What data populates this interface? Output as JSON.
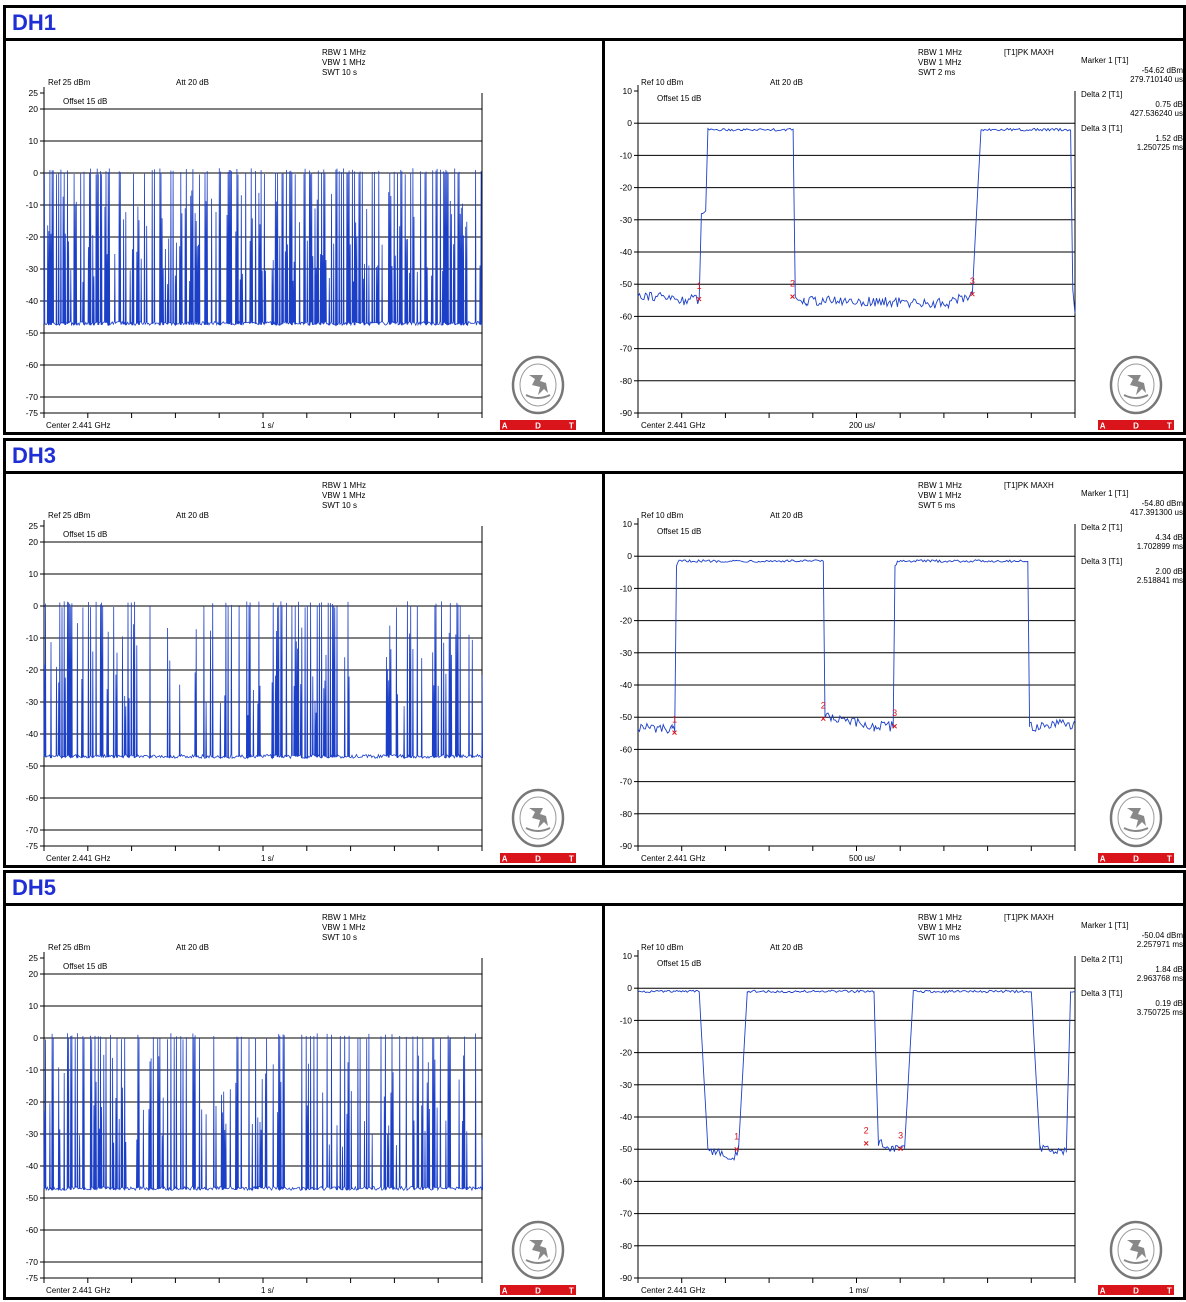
{
  "colors": {
    "title": "#1f2fd6",
    "trace": "#1c3fc8",
    "marker": "#d9141b",
    "grid": "#000000",
    "adt": "#d9141b"
  },
  "sections": [
    {
      "title": "DH1",
      "left": {
        "ref": "Ref 25 dBm",
        "att": "Att 20 dB",
        "rbw": "RBW 1 MHz",
        "vbw": "VBW 1 MHz",
        "swt": "SWT 10 s",
        "offset": "Offset 15 dB",
        "center": "Center 2.441 GHz",
        "span": "1 s/",
        "y_ticks": [
          "25",
          "20",
          "10",
          "0",
          "-10",
          "-20",
          "-30",
          "-40",
          "-50",
          "-60",
          "-70",
          "-75"
        ],
        "adt": [
          "A",
          "D",
          "T"
        ]
      },
      "right": {
        "ref": "Ref 10 dBm",
        "att": "Att 20 dB",
        "rbw": "RBW 1 MHz",
        "vbw": "VBW 1 MHz",
        "swt": "SWT 2 ms",
        "trace_mode": "[T1]PK MAXH",
        "offset": "Offset 15 dB",
        "center": "Center 2.441 GHz",
        "span": "200 us/",
        "y_ticks": [
          "10",
          "0",
          "-10",
          "-20",
          "-30",
          "-40",
          "-50",
          "-60",
          "-70",
          "-80",
          "-90"
        ],
        "markers": [
          {
            "label": "Marker 1 [T1]",
            "value": "-54.62 dBm",
            "time": "279.710140 us"
          },
          {
            "label": "Delta 2 [T1]",
            "value": "0.75 dB",
            "time": "427.536240 us"
          },
          {
            "label": "Delta 3 [T1]",
            "value": "1.52 dB",
            "time": "1.250725 ms"
          }
        ],
        "adt": [
          "A",
          "D",
          "T"
        ]
      }
    },
    {
      "title": "DH3",
      "left": {
        "ref": "Ref 25 dBm",
        "att": "Att 20 dB",
        "rbw": "RBW 1 MHz",
        "vbw": "VBW 1 MHz",
        "swt": "SWT 10 s",
        "offset": "Offset 15 dB",
        "center": "Center 2.441 GHz",
        "span": "1 s/",
        "y_ticks": [
          "25",
          "20",
          "10",
          "0",
          "-10",
          "-20",
          "-30",
          "-40",
          "-50",
          "-60",
          "-70",
          "-75"
        ],
        "adt": [
          "A",
          "D",
          "T"
        ]
      },
      "right": {
        "ref": "Ref 10 dBm",
        "att": "Att 20 dB",
        "rbw": "RBW 1 MHz",
        "vbw": "VBW 1 MHz",
        "swt": "SWT 5 ms",
        "trace_mode": "[T1]PK MAXH",
        "offset": "Offset 15 dB",
        "center": "Center 2.441 GHz",
        "span": "500 us/",
        "y_ticks": [
          "10",
          "0",
          "-10",
          "-20",
          "-30",
          "-40",
          "-50",
          "-60",
          "-70",
          "-80",
          "-90"
        ],
        "markers": [
          {
            "label": "Marker 1 [T1]",
            "value": "-54.80 dBm",
            "time": "417.391300 us"
          },
          {
            "label": "Delta 2 [T1]",
            "value": "4.34 dB",
            "time": "1.702899 ms"
          },
          {
            "label": "Delta 3 [T1]",
            "value": "2.00 dB",
            "time": "2.518841 ms"
          }
        ],
        "adt": [
          "A",
          "D",
          "T"
        ]
      }
    },
    {
      "title": "DH5",
      "left": {
        "ref": "Ref 25 dBm",
        "att": "Att 20 dB",
        "rbw": "RBW 1 MHz",
        "vbw": "VBW 1 MHz",
        "swt": "SWT 10 s",
        "offset": "Offset 15 dB",
        "center": "Center 2.441 GHz",
        "span": "1 s/",
        "y_ticks": [
          "25",
          "20",
          "10",
          "0",
          "-10",
          "-20",
          "-30",
          "-40",
          "-50",
          "-60",
          "-70",
          "-75"
        ],
        "adt": [
          "A",
          "D",
          "T"
        ]
      },
      "right": {
        "ref": "Ref 10 dBm",
        "att": "Att 20 dB",
        "rbw": "RBW 1 MHz",
        "vbw": "VBW 1 MHz",
        "swt": "SWT 10 ms",
        "trace_mode": "[T1]PK MAXH",
        "offset": "Offset 15 dB",
        "center": "Center 2.441 GHz",
        "span": "1 ms/",
        "y_ticks": [
          "10",
          "0",
          "-10",
          "-20",
          "-30",
          "-40",
          "-50",
          "-60",
          "-70",
          "-80",
          "-90"
        ],
        "markers": [
          {
            "label": "Marker 1 [T1]",
            "value": "-50.04 dBm",
            "time": "2.257971 ms"
          },
          {
            "label": "Delta 2 [T1]",
            "value": "1.84 dB",
            "time": "2.963768 ms"
          },
          {
            "label": "Delta 3 [T1]",
            "value": "0.19 dB",
            "time": "3.750725 ms"
          }
        ],
        "adt": [
          "A",
          "D",
          "T"
        ]
      }
    }
  ],
  "chart_data": [
    {
      "type": "line",
      "section": "DH1",
      "trace": "left",
      "title": "",
      "xlabel": "",
      "ylabel": "",
      "x_unit_per_div": "1 s",
      "ylim": [
        -75,
        25
      ],
      "sweep_s": 10,
      "pattern": "dense hopping bursts",
      "high_dbm": -0.5,
      "low_dbm": -47,
      "density": "high"
    },
    {
      "type": "line",
      "section": "DH1",
      "trace": "right",
      "title": "",
      "xlabel": "",
      "ylabel": "",
      "x_unit_per_div": "200 us",
      "ylim": [
        -90,
        10
      ],
      "sweep_ms": 2,
      "series": [
        {
          "x": [
            0,
            0.21,
            0.28,
            0.29,
            0.31,
            0.32,
            0.71,
            0.72,
            0.76,
            0.77,
            1.42,
            1.53,
            1.55,
            1.57,
            1.58,
            1.98,
            1.99,
            2.0
          ],
          "y": [
            -53,
            -55,
            -54.6,
            -28,
            -27,
            -2,
            -2,
            -53.9,
            -55,
            -55,
            -56,
            -53.1,
            -27,
            -2,
            -2,
            -2,
            -52,
            -58
          ]
        }
      ],
      "markers": [
        {
          "n": 1,
          "x": 0.2797,
          "y": -54.62
        },
        {
          "n": 2,
          "x": 0.7072,
          "delta_db": 0.75
        },
        {
          "n": 3,
          "x": 1.5304,
          "delta_db": 1.52
        }
      ]
    },
    {
      "type": "line",
      "section": "DH3",
      "trace": "left",
      "title": "",
      "xlabel": "",
      "ylabel": "",
      "x_unit_per_div": "1 s",
      "ylim": [
        -75,
        25
      ],
      "sweep_s": 10,
      "pattern": "hopping bursts with gaps",
      "high_dbm": -0.5,
      "low_dbm": -47,
      "density": "medium"
    },
    {
      "type": "line",
      "section": "DH3",
      "trace": "right",
      "title": "",
      "xlabel": "",
      "ylabel": "",
      "x_unit_per_div": "500 us",
      "ylim": [
        -90,
        10
      ],
      "sweep_ms": 5,
      "series": [
        {
          "x": [
            0,
            0.39,
            0.42,
            0.44,
            0.47,
            2.12,
            2.14,
            2.7,
            2.92,
            2.94,
            2.97,
            4.46,
            4.48,
            5.0
          ],
          "y": [
            -53,
            -54,
            -54.8,
            -3,
            -1.5,
            -1.5,
            -50,
            -53,
            -52.8,
            -3,
            -1.5,
            -1.5,
            -53,
            -52
          ]
        }
      ],
      "markers": [
        {
          "n": 1,
          "x": 0.4174,
          "y": -54.8
        },
        {
          "n": 2,
          "x": 2.1203,
          "delta_db": 4.34
        },
        {
          "n": 3,
          "x": 2.9362,
          "delta_db": 2.0
        }
      ]
    },
    {
      "type": "line",
      "section": "DH5",
      "trace": "left",
      "title": "",
      "xlabel": "",
      "ylabel": "",
      "x_unit_per_div": "1 s",
      "ylim": [
        -75,
        25
      ],
      "sweep_s": 10,
      "pattern": "hopping bursts",
      "high_dbm": -0.5,
      "low_dbm": -47,
      "density": "medium"
    },
    {
      "type": "line",
      "section": "DH5",
      "trace": "right",
      "title": "",
      "xlabel": "",
      "ylabel": "",
      "x_unit_per_div": "1 ms",
      "ylim": [
        -90,
        10
      ],
      "sweep_ms": 10,
      "series": [
        {
          "x": [
            0,
            1.4,
            1.6,
            2.2,
            2.3,
            2.5,
            5.4,
            5.5,
            5.8,
            6.1,
            6.3,
            9.0,
            9.2,
            9.8,
            9.9,
            10.0
          ],
          "y": [
            -1,
            -1,
            -50,
            -52,
            -50.0,
            -1,
            -1,
            -48.2,
            -50,
            -49.8,
            -1,
            -1,
            -50,
            -51,
            -1,
            -1
          ]
        }
      ],
      "markers": [
        {
          "n": 1,
          "x": 2.258,
          "y": -50.04
        },
        {
          "n": 2,
          "x": 5.2218,
          "delta_db": 1.84
        },
        {
          "n": 3,
          "x": 6.0087,
          "delta_db": 0.19
        }
      ]
    }
  ]
}
